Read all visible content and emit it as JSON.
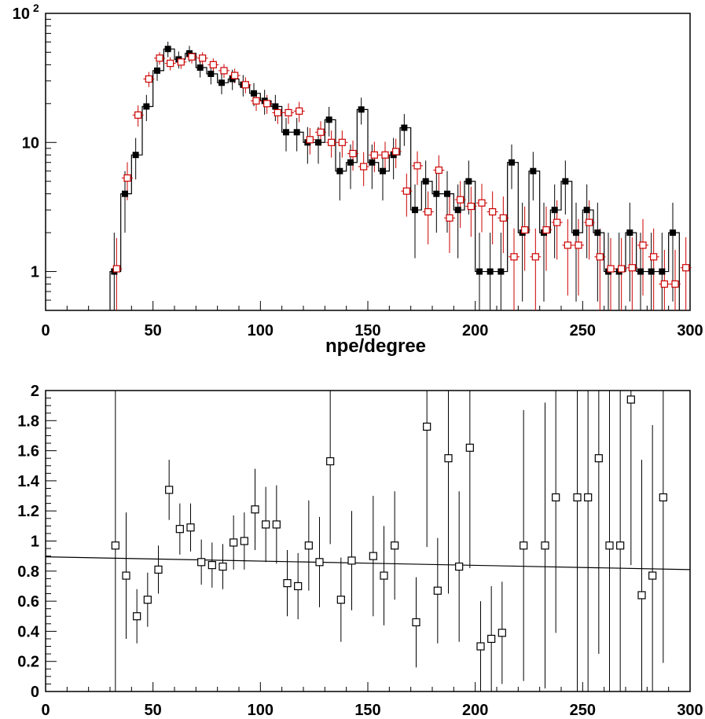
{
  "chart_data": [
    {
      "type": "histogram",
      "yscale": "log",
      "xlim": [
        0,
        300
      ],
      "ylim": [
        0.5,
        100
      ],
      "grid": false,
      "xlabel": "npe/degree",
      "ylabel": "",
      "title": "",
      "x_ticks": [
        "0",
        "50",
        "100",
        "150",
        "200",
        "250",
        "300"
      ],
      "y_ticks": [
        {
          "value": 1,
          "label": "1"
        },
        {
          "value": 10,
          "label": "10"
        },
        {
          "value": 100,
          "label": "10",
          "exponent": "2"
        }
      ],
      "bin_width": 5,
      "series": [
        {
          "marker": "filled-square",
          "draw": "histogram+markers",
          "color": "#000000",
          "x": [
            32.5,
            37.5,
            42.5,
            47.5,
            52.5,
            57.5,
            62.5,
            67.5,
            72.5,
            77.5,
            82.5,
            87.5,
            92.5,
            97.5,
            102.5,
            107.5,
            112.5,
            117.5,
            122.5,
            127.5,
            132.5,
            137.5,
            142.5,
            147.5,
            152.5,
            157.5,
            162.5,
            167.5,
            172.5,
            177.5,
            182.5,
            187.5,
            192.5,
            197.5,
            202.5,
            207.5,
            212.5,
            217.5,
            222.5,
            227.5,
            232.5,
            237.5,
            242.5,
            247.5,
            252.5,
            257.5,
            262.5,
            267.5,
            272.5,
            277.5,
            282.5,
            287.5,
            292.5
          ],
          "y": [
            1,
            4,
            8,
            19,
            36,
            53,
            44,
            49,
            38,
            34,
            29,
            31,
            28,
            24,
            21,
            19,
            12,
            12,
            10,
            10,
            15,
            6,
            7,
            18,
            7,
            6,
            8,
            13,
            3,
            5,
            4,
            4,
            3,
            5,
            1,
            1,
            1,
            7,
            2,
            6,
            2,
            3,
            5,
            2,
            3,
            2,
            1,
            1,
            2,
            1,
            1,
            1,
            2
          ]
        },
        {
          "marker": "open-square",
          "draw": "markers",
          "color": "#cc0000",
          "x": [
            32.5,
            37.5,
            42.5,
            47.5,
            52.5,
            57.5,
            62.5,
            67.5,
            72.5,
            77.5,
            82.5,
            87.5,
            92.5,
            97.5,
            102.5,
            107.5,
            112.5,
            117.5,
            122.5,
            127.5,
            132.5,
            137.5,
            142.5,
            147.5,
            152.5,
            157.5,
            162.5,
            167.5,
            172.5,
            177.5,
            182.5,
            187.5,
            192.5,
            197.5,
            202.5,
            207.5,
            212.5,
            217.5,
            222.5,
            227.5,
            232.5,
            237.5,
            242.5,
            247.5,
            252.5,
            257.5,
            262.5,
            267.5,
            272.5,
            277.5,
            282.5,
            287.5,
            292.5,
            297.5
          ],
          "y": [
            1.05,
            5.3,
            16.3,
            31,
            45,
            41,
            42,
            46,
            45,
            40,
            36,
            33,
            28,
            21,
            20,
            17,
            17,
            17.5,
            10.5,
            12,
            10,
            10,
            8.2,
            6.5,
            8,
            8,
            8.5,
            4.2,
            6.6,
            2.9,
            6.1,
            2.6,
            3.6,
            3.2,
            3.4,
            2.9,
            2.6,
            1.3,
            2.1,
            1.3,
            2.1,
            2.4,
            1.6,
            1.6,
            2.4,
            1.3,
            1.05,
            1.05,
            1.07,
            1.6,
            1.3,
            0.8,
            0.8,
            1.07
          ]
        }
      ]
    },
    {
      "type": "scatter",
      "xlim": [
        0,
        300
      ],
      "ylim": [
        0,
        2
      ],
      "grid": false,
      "xlabel": "",
      "ylabel": "",
      "title": "",
      "x_ticks": [
        "0",
        "50",
        "100",
        "150",
        "200",
        "250",
        "300"
      ],
      "y_ticks": [
        "0",
        "0.2",
        "0.4",
        "0.6",
        "0.8",
        "1",
        "1.2",
        "1.4",
        "1.6",
        "1.8",
        "2"
      ],
      "series": [
        {
          "marker": "open-square",
          "color": "#000000",
          "x": [
            32.5,
            37.5,
            42.5,
            47.5,
            52.5,
            57.5,
            62.5,
            67.5,
            72.5,
            77.5,
            82.5,
            87.5,
            92.5,
            97.5,
            102.5,
            107.5,
            112.5,
            117.5,
            122.5,
            127.5,
            132.5,
            137.5,
            142.5,
            152.5,
            157.5,
            162.5,
            172.5,
            177.5,
            182.5,
            187.5,
            192.5,
            197.5,
            202.5,
            207.5,
            212.5,
            222.5,
            232.5,
            237.5,
            247.5,
            252.5,
            257.5,
            262.5,
            267.5,
            272.5,
            277.5,
            282.5,
            287.5
          ],
          "y": [
            0.97,
            0.77,
            0.5,
            0.61,
            0.81,
            1.34,
            1.08,
            1.09,
            0.86,
            0.84,
            0.83,
            0.99,
            1.0,
            1.21,
            1.11,
            1.11,
            0.72,
            0.7,
            0.97,
            0.86,
            1.53,
            0.61,
            0.87,
            0.9,
            0.77,
            0.97,
            0.46,
            1.76,
            0.67,
            1.55,
            0.83,
            1.62,
            0.3,
            0.35,
            0.39,
            0.97,
            0.97,
            1.29,
            1.29,
            1.29,
            1.55,
            0.97,
            0.97,
            1.94,
            0.64,
            0.77,
            1.29
          ],
          "err": [
            1.2,
            0.42,
            0.18,
            0.18,
            0.16,
            0.2,
            0.17,
            0.16,
            0.15,
            0.15,
            0.15,
            0.18,
            0.19,
            0.27,
            0.25,
            0.26,
            0.22,
            0.22,
            0.3,
            0.3,
            0.55,
            0.28,
            0.33,
            0.4,
            0.33,
            0.36,
            0.3,
            0.8,
            0.35,
            0.9,
            0.5,
            0.8,
            0.3,
            0.35,
            0.34,
            0.9,
            0.95,
            0.9,
            1.3,
            1.3,
            1.3,
            1.3,
            1.3,
            1.1,
            0.9,
            1.0,
            1.1
          ]
        }
      ],
      "fit_line": {
        "x": [
          0,
          300
        ],
        "y": [
          0.895,
          0.81
        ]
      }
    }
  ]
}
